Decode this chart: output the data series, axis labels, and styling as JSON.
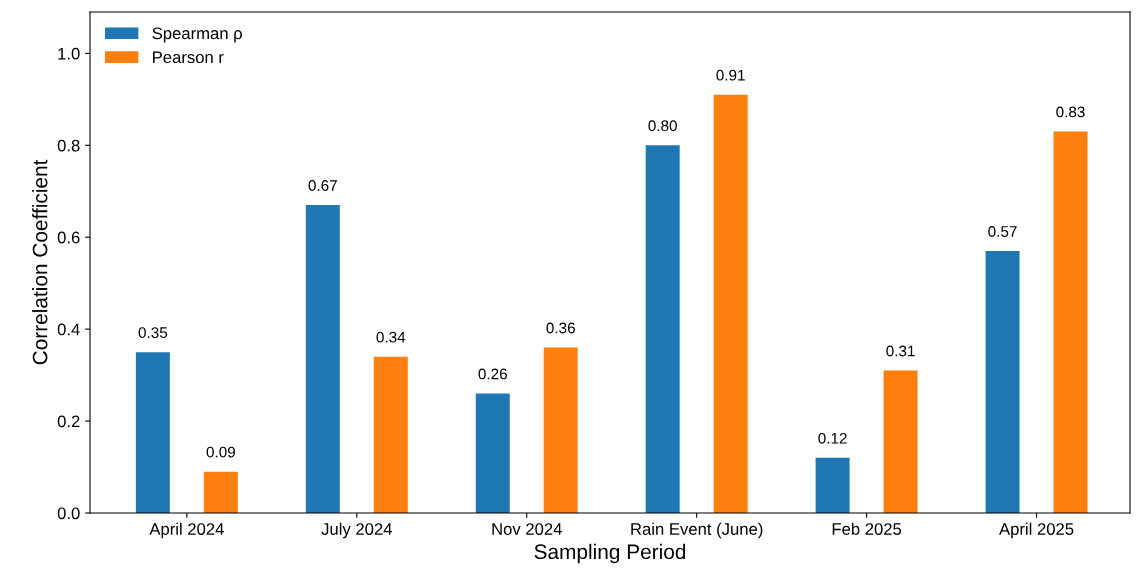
{
  "chart_data": {
    "type": "bar",
    "xlabel": "Sampling Period",
    "ylabel": "Correlation Coefficient",
    "categories": [
      "April 2024",
      "July 2024",
      "Nov 2024",
      "Rain Event (June)",
      "Feb 2025",
      "April 2025"
    ],
    "series": [
      {
        "name": "Spearman ρ",
        "color": "#1f77b4",
        "values": [
          0.35,
          0.67,
          0.26,
          0.8,
          0.12,
          0.57
        ],
        "value_labels": [
          "0.35",
          "0.67",
          "0.26",
          "0.80",
          "0.12",
          "0.57"
        ]
      },
      {
        "name": "Pearson r",
        "color": "#ff7f0e",
        "values": [
          0.09,
          0.34,
          0.36,
          0.91,
          0.31,
          0.83
        ],
        "value_labels": [
          "0.09",
          "0.34",
          "0.36",
          "0.91",
          "0.31",
          "0.83"
        ]
      }
    ],
    "ylim": [
      0,
      1.09
    ],
    "yticks": [
      {
        "value": 0,
        "label": "0.0"
      },
      {
        "value": 0.2,
        "label": "0.2"
      },
      {
        "value": 0.4,
        "label": "0.4"
      },
      {
        "value": 0.6,
        "label": "0.6"
      },
      {
        "value": 0.8,
        "label": "0.8"
      },
      {
        "value": 1.0,
        "label": "1.0"
      }
    ],
    "grid": false,
    "legend": "top left"
  }
}
